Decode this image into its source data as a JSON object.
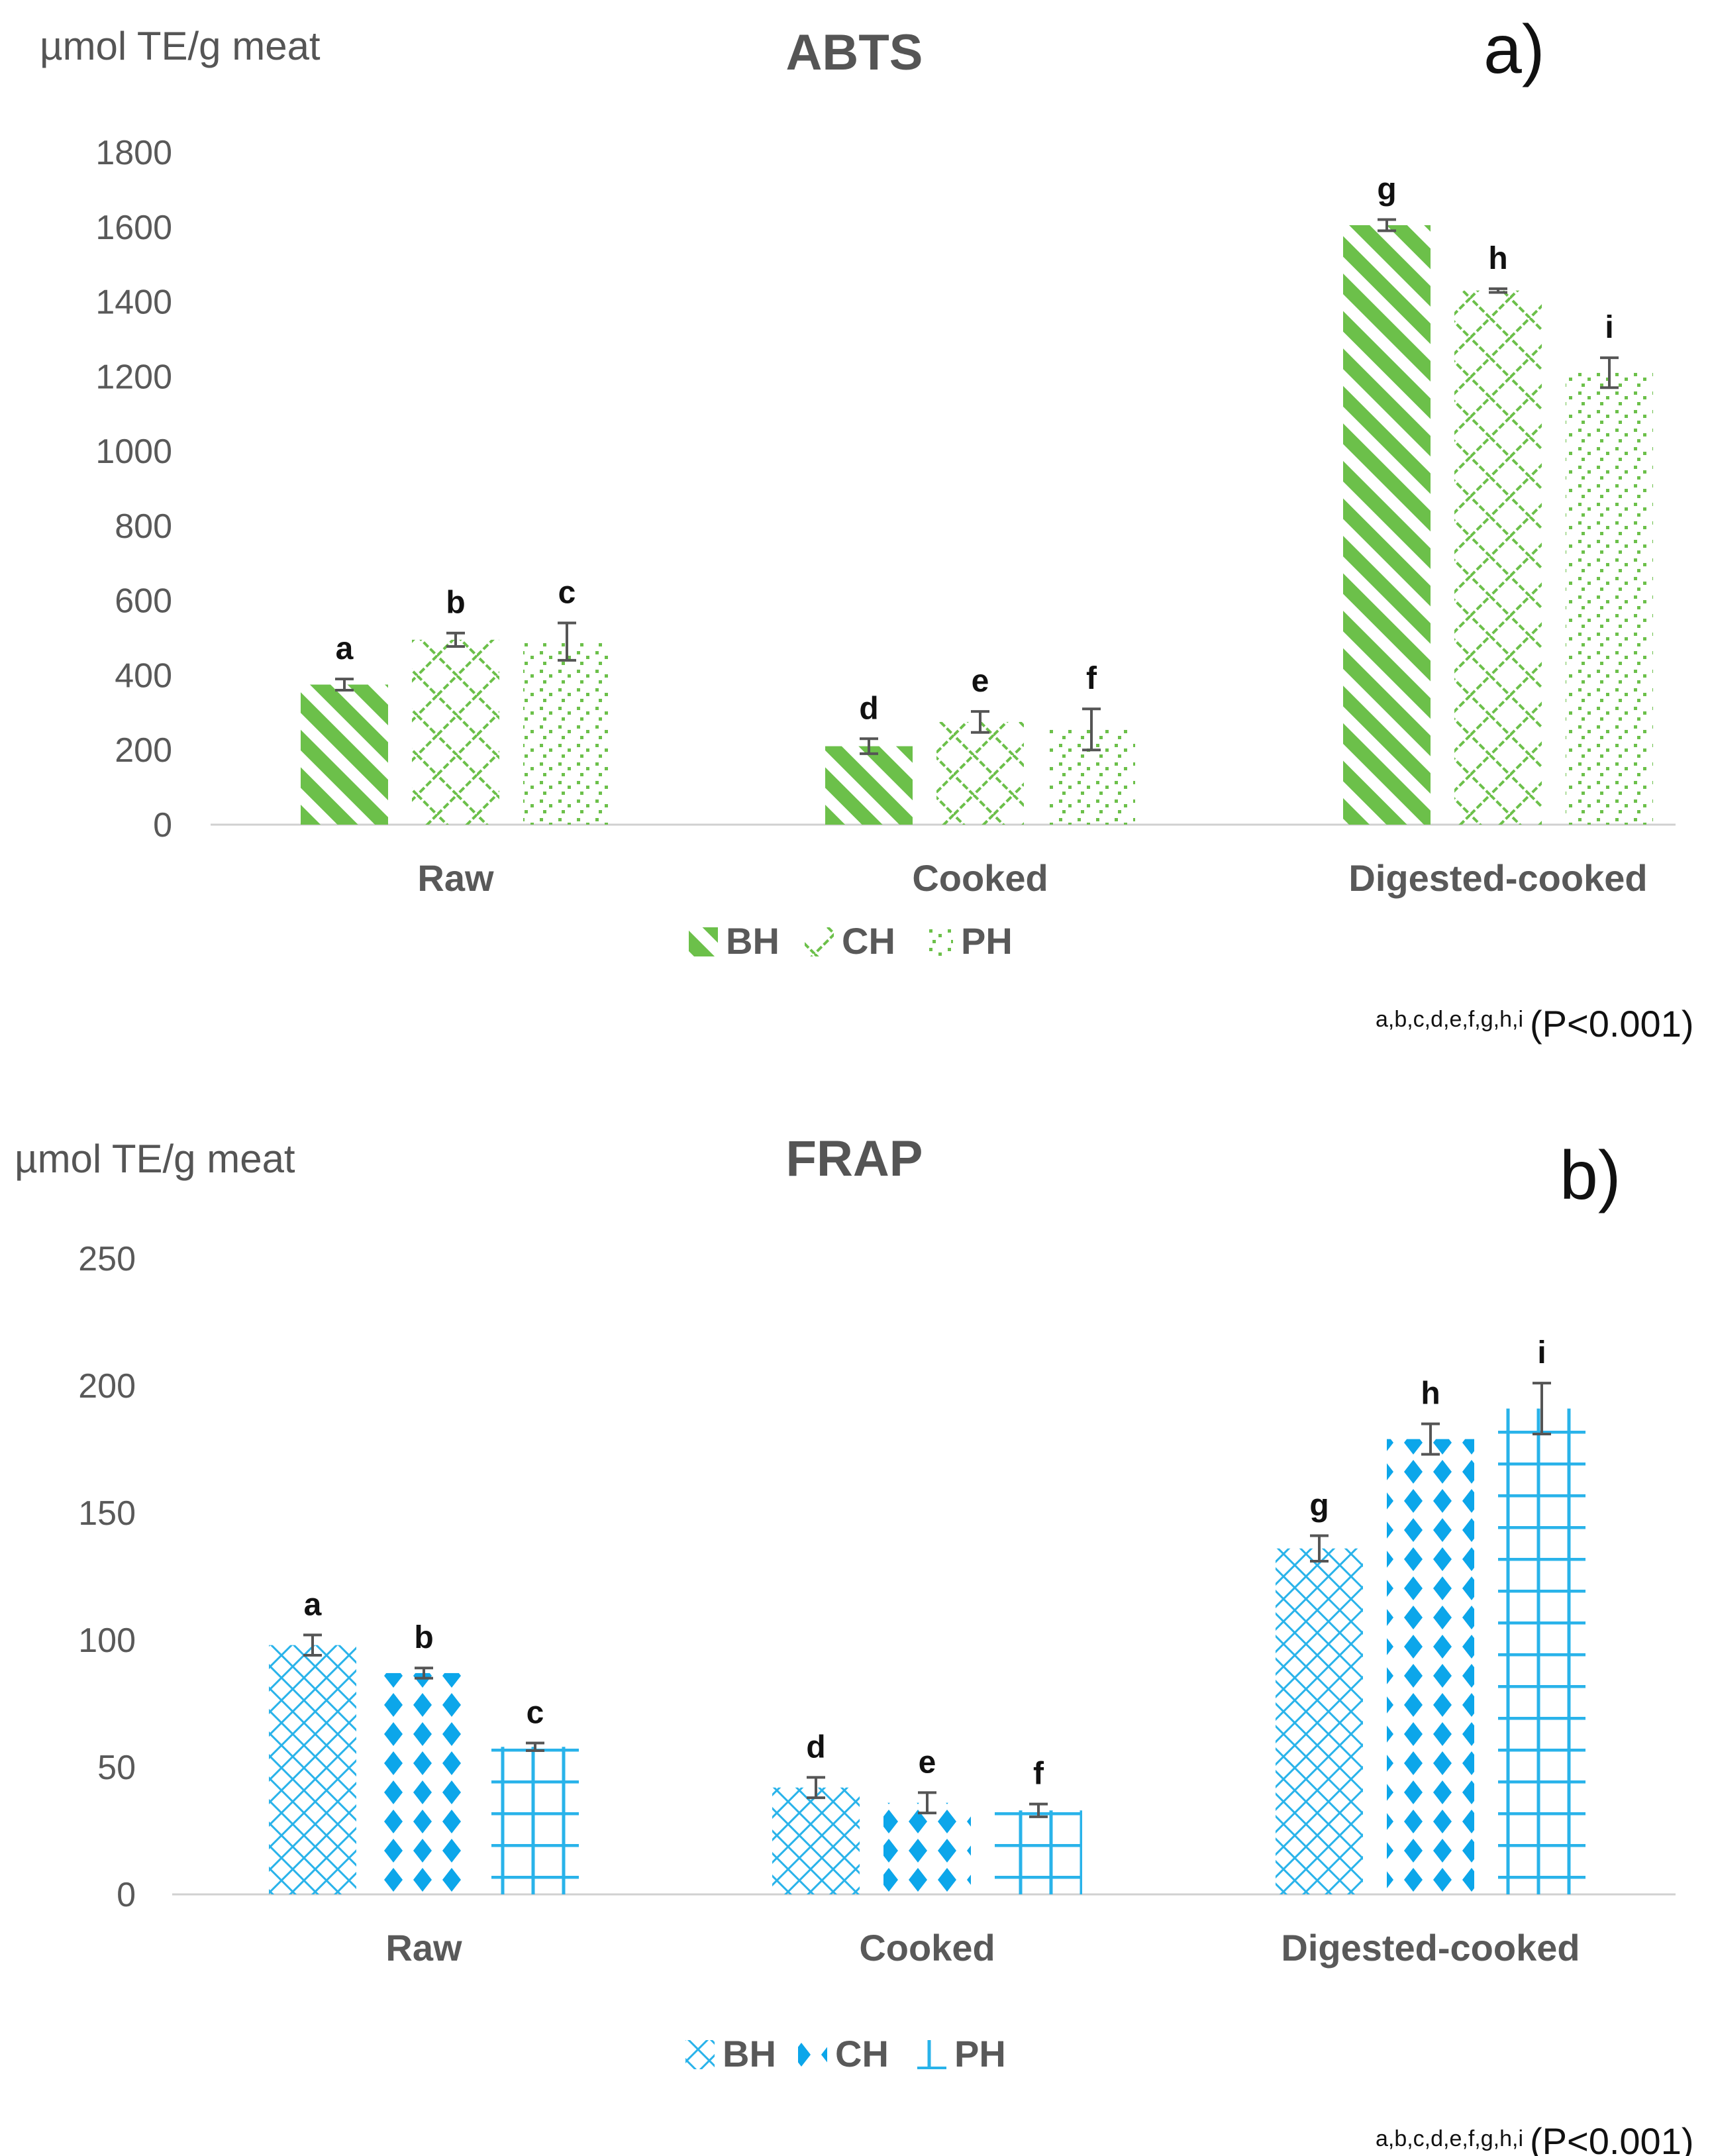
{
  "chart_data": [
    {
      "panel": "a)",
      "type": "bar",
      "title": "ABTS",
      "ylabel": "µmol TE/g meat",
      "xlabel": "",
      "ylim": [
        0,
        1800
      ],
      "yticks": [
        0,
        200,
        400,
        600,
        800,
        1000,
        1200,
        1400,
        1600,
        1800
      ],
      "grid": false,
      "legend_position": "bottom",
      "categories": [
        "Raw",
        "Cooked",
        "Digested-cooked"
      ],
      "series": [
        {
          "name": "BH",
          "color": "#6cc04a",
          "pattern": "diagonal-stripes",
          "values": [
            375,
            210,
            1605
          ],
          "errors": [
            15,
            20,
            15
          ],
          "letters": [
            "a",
            "d",
            "g"
          ]
        },
        {
          "name": "CH",
          "color": "#6cc04a",
          "pattern": "lattice",
          "values": [
            495,
            275,
            1430
          ],
          "errors": [
            18,
            28,
            5
          ],
          "letters": [
            "b",
            "e",
            "h"
          ]
        },
        {
          "name": "PH",
          "color": "#6cc04a",
          "pattern": "dots",
          "values": [
            490,
            255,
            1210
          ],
          "errors": [
            50,
            55,
            40
          ],
          "letters": [
            "c",
            "f",
            "i"
          ]
        }
      ],
      "significance_letters": "a,b,c,d,e,f,g,h,i",
      "significance_note": "(P<0.001)"
    },
    {
      "panel": "b)",
      "type": "bar",
      "title": "FRAP",
      "ylabel": "µmol TE/g meat",
      "xlabel": "",
      "ylim": [
        0,
        250
      ],
      "yticks": [
        0,
        50,
        100,
        150,
        200,
        250
      ],
      "grid": false,
      "legend_position": "bottom",
      "categories": [
        "Raw",
        "Cooked",
        "Digested-cooked"
      ],
      "series": [
        {
          "name": "BH",
          "color": "#29b3ea",
          "pattern": "crosshatch",
          "values": [
            98,
            42,
            136
          ],
          "errors": [
            4,
            4,
            5
          ],
          "letters": [
            "a",
            "d",
            "g"
          ]
        },
        {
          "name": "CH",
          "color": "#0ca6ea",
          "pattern": "diamonds",
          "values": [
            87,
            36,
            179
          ],
          "errors": [
            2,
            4,
            6
          ],
          "letters": [
            "b",
            "e",
            "h"
          ]
        },
        {
          "name": "PH",
          "color": "#29b3ea",
          "pattern": "grid",
          "values": [
            58,
            33,
            191
          ],
          "errors": [
            1.5,
            2.5,
            10
          ],
          "letters": [
            "c",
            "f",
            "i"
          ]
        }
      ],
      "significance_letters": "a,b,c,d,e,f,g,h,i",
      "significance_note": "(P<0.001)"
    }
  ]
}
